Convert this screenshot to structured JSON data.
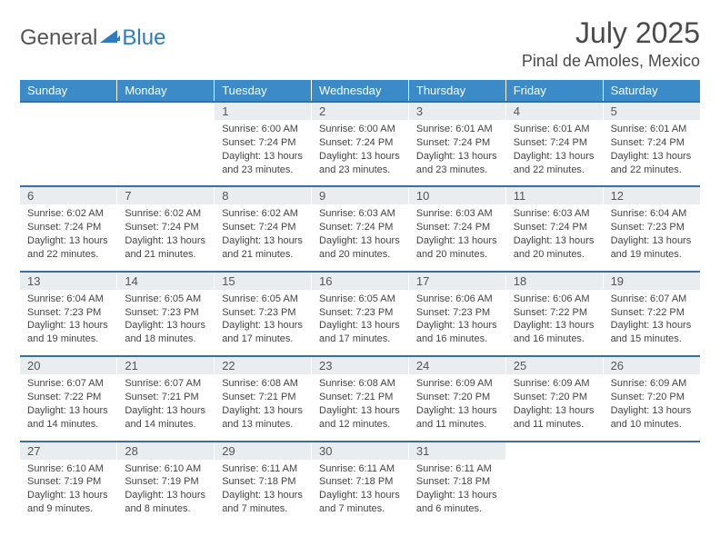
{
  "logo": {
    "text1": "General",
    "text2": "Blue"
  },
  "title": "July 2025",
  "location": "Pinal de Amoles, Mexico",
  "colors": {
    "header_bg": "#3b8bc9",
    "header_text": "#ffffff",
    "daynum_bg": "#e9edf0",
    "border_top": "#3b6ea0",
    "logo_accent": "#2f7bbf"
  },
  "weekdays": [
    "Sunday",
    "Monday",
    "Tuesday",
    "Wednesday",
    "Thursday",
    "Friday",
    "Saturday"
  ],
  "weeks": [
    {
      "nums": [
        "",
        "",
        "1",
        "2",
        "3",
        "4",
        "5"
      ],
      "cells": [
        {},
        {},
        {
          "sunrise": "Sunrise: 6:00 AM",
          "sunset": "Sunset: 7:24 PM",
          "day1": "Daylight: 13 hours",
          "day2": "and 23 minutes."
        },
        {
          "sunrise": "Sunrise: 6:00 AM",
          "sunset": "Sunset: 7:24 PM",
          "day1": "Daylight: 13 hours",
          "day2": "and 23 minutes."
        },
        {
          "sunrise": "Sunrise: 6:01 AM",
          "sunset": "Sunset: 7:24 PM",
          "day1": "Daylight: 13 hours",
          "day2": "and 23 minutes."
        },
        {
          "sunrise": "Sunrise: 6:01 AM",
          "sunset": "Sunset: 7:24 PM",
          "day1": "Daylight: 13 hours",
          "day2": "and 22 minutes."
        },
        {
          "sunrise": "Sunrise: 6:01 AM",
          "sunset": "Sunset: 7:24 PM",
          "day1": "Daylight: 13 hours",
          "day2": "and 22 minutes."
        }
      ]
    },
    {
      "nums": [
        "6",
        "7",
        "8",
        "9",
        "10",
        "11",
        "12"
      ],
      "cells": [
        {
          "sunrise": "Sunrise: 6:02 AM",
          "sunset": "Sunset: 7:24 PM",
          "day1": "Daylight: 13 hours",
          "day2": "and 22 minutes."
        },
        {
          "sunrise": "Sunrise: 6:02 AM",
          "sunset": "Sunset: 7:24 PM",
          "day1": "Daylight: 13 hours",
          "day2": "and 21 minutes."
        },
        {
          "sunrise": "Sunrise: 6:02 AM",
          "sunset": "Sunset: 7:24 PM",
          "day1": "Daylight: 13 hours",
          "day2": "and 21 minutes."
        },
        {
          "sunrise": "Sunrise: 6:03 AM",
          "sunset": "Sunset: 7:24 PM",
          "day1": "Daylight: 13 hours",
          "day2": "and 20 minutes."
        },
        {
          "sunrise": "Sunrise: 6:03 AM",
          "sunset": "Sunset: 7:24 PM",
          "day1": "Daylight: 13 hours",
          "day2": "and 20 minutes."
        },
        {
          "sunrise": "Sunrise: 6:03 AM",
          "sunset": "Sunset: 7:24 PM",
          "day1": "Daylight: 13 hours",
          "day2": "and 20 minutes."
        },
        {
          "sunrise": "Sunrise: 6:04 AM",
          "sunset": "Sunset: 7:23 PM",
          "day1": "Daylight: 13 hours",
          "day2": "and 19 minutes."
        }
      ]
    },
    {
      "nums": [
        "13",
        "14",
        "15",
        "16",
        "17",
        "18",
        "19"
      ],
      "cells": [
        {
          "sunrise": "Sunrise: 6:04 AM",
          "sunset": "Sunset: 7:23 PM",
          "day1": "Daylight: 13 hours",
          "day2": "and 19 minutes."
        },
        {
          "sunrise": "Sunrise: 6:05 AM",
          "sunset": "Sunset: 7:23 PM",
          "day1": "Daylight: 13 hours",
          "day2": "and 18 minutes."
        },
        {
          "sunrise": "Sunrise: 6:05 AM",
          "sunset": "Sunset: 7:23 PM",
          "day1": "Daylight: 13 hours",
          "day2": "and 17 minutes."
        },
        {
          "sunrise": "Sunrise: 6:05 AM",
          "sunset": "Sunset: 7:23 PM",
          "day1": "Daylight: 13 hours",
          "day2": "and 17 minutes."
        },
        {
          "sunrise": "Sunrise: 6:06 AM",
          "sunset": "Sunset: 7:23 PM",
          "day1": "Daylight: 13 hours",
          "day2": "and 16 minutes."
        },
        {
          "sunrise": "Sunrise: 6:06 AM",
          "sunset": "Sunset: 7:22 PM",
          "day1": "Daylight: 13 hours",
          "day2": "and 16 minutes."
        },
        {
          "sunrise": "Sunrise: 6:07 AM",
          "sunset": "Sunset: 7:22 PM",
          "day1": "Daylight: 13 hours",
          "day2": "and 15 minutes."
        }
      ]
    },
    {
      "nums": [
        "20",
        "21",
        "22",
        "23",
        "24",
        "25",
        "26"
      ],
      "cells": [
        {
          "sunrise": "Sunrise: 6:07 AM",
          "sunset": "Sunset: 7:22 PM",
          "day1": "Daylight: 13 hours",
          "day2": "and 14 minutes."
        },
        {
          "sunrise": "Sunrise: 6:07 AM",
          "sunset": "Sunset: 7:21 PM",
          "day1": "Daylight: 13 hours",
          "day2": "and 14 minutes."
        },
        {
          "sunrise": "Sunrise: 6:08 AM",
          "sunset": "Sunset: 7:21 PM",
          "day1": "Daylight: 13 hours",
          "day2": "and 13 minutes."
        },
        {
          "sunrise": "Sunrise: 6:08 AM",
          "sunset": "Sunset: 7:21 PM",
          "day1": "Daylight: 13 hours",
          "day2": "and 12 minutes."
        },
        {
          "sunrise": "Sunrise: 6:09 AM",
          "sunset": "Sunset: 7:20 PM",
          "day1": "Daylight: 13 hours",
          "day2": "and 11 minutes."
        },
        {
          "sunrise": "Sunrise: 6:09 AM",
          "sunset": "Sunset: 7:20 PM",
          "day1": "Daylight: 13 hours",
          "day2": "and 11 minutes."
        },
        {
          "sunrise": "Sunrise: 6:09 AM",
          "sunset": "Sunset: 7:20 PM",
          "day1": "Daylight: 13 hours",
          "day2": "and 10 minutes."
        }
      ]
    },
    {
      "nums": [
        "27",
        "28",
        "29",
        "30",
        "31",
        "",
        ""
      ],
      "cells": [
        {
          "sunrise": "Sunrise: 6:10 AM",
          "sunset": "Sunset: 7:19 PM",
          "day1": "Daylight: 13 hours",
          "day2": "and 9 minutes."
        },
        {
          "sunrise": "Sunrise: 6:10 AM",
          "sunset": "Sunset: 7:19 PM",
          "day1": "Daylight: 13 hours",
          "day2": "and 8 minutes."
        },
        {
          "sunrise": "Sunrise: 6:11 AM",
          "sunset": "Sunset: 7:18 PM",
          "day1": "Daylight: 13 hours",
          "day2": "and 7 minutes."
        },
        {
          "sunrise": "Sunrise: 6:11 AM",
          "sunset": "Sunset: 7:18 PM",
          "day1": "Daylight: 13 hours",
          "day2": "and 7 minutes."
        },
        {
          "sunrise": "Sunrise: 6:11 AM",
          "sunset": "Sunset: 7:18 PM",
          "day1": "Daylight: 13 hours",
          "day2": "and 6 minutes."
        },
        {},
        {}
      ]
    }
  ]
}
